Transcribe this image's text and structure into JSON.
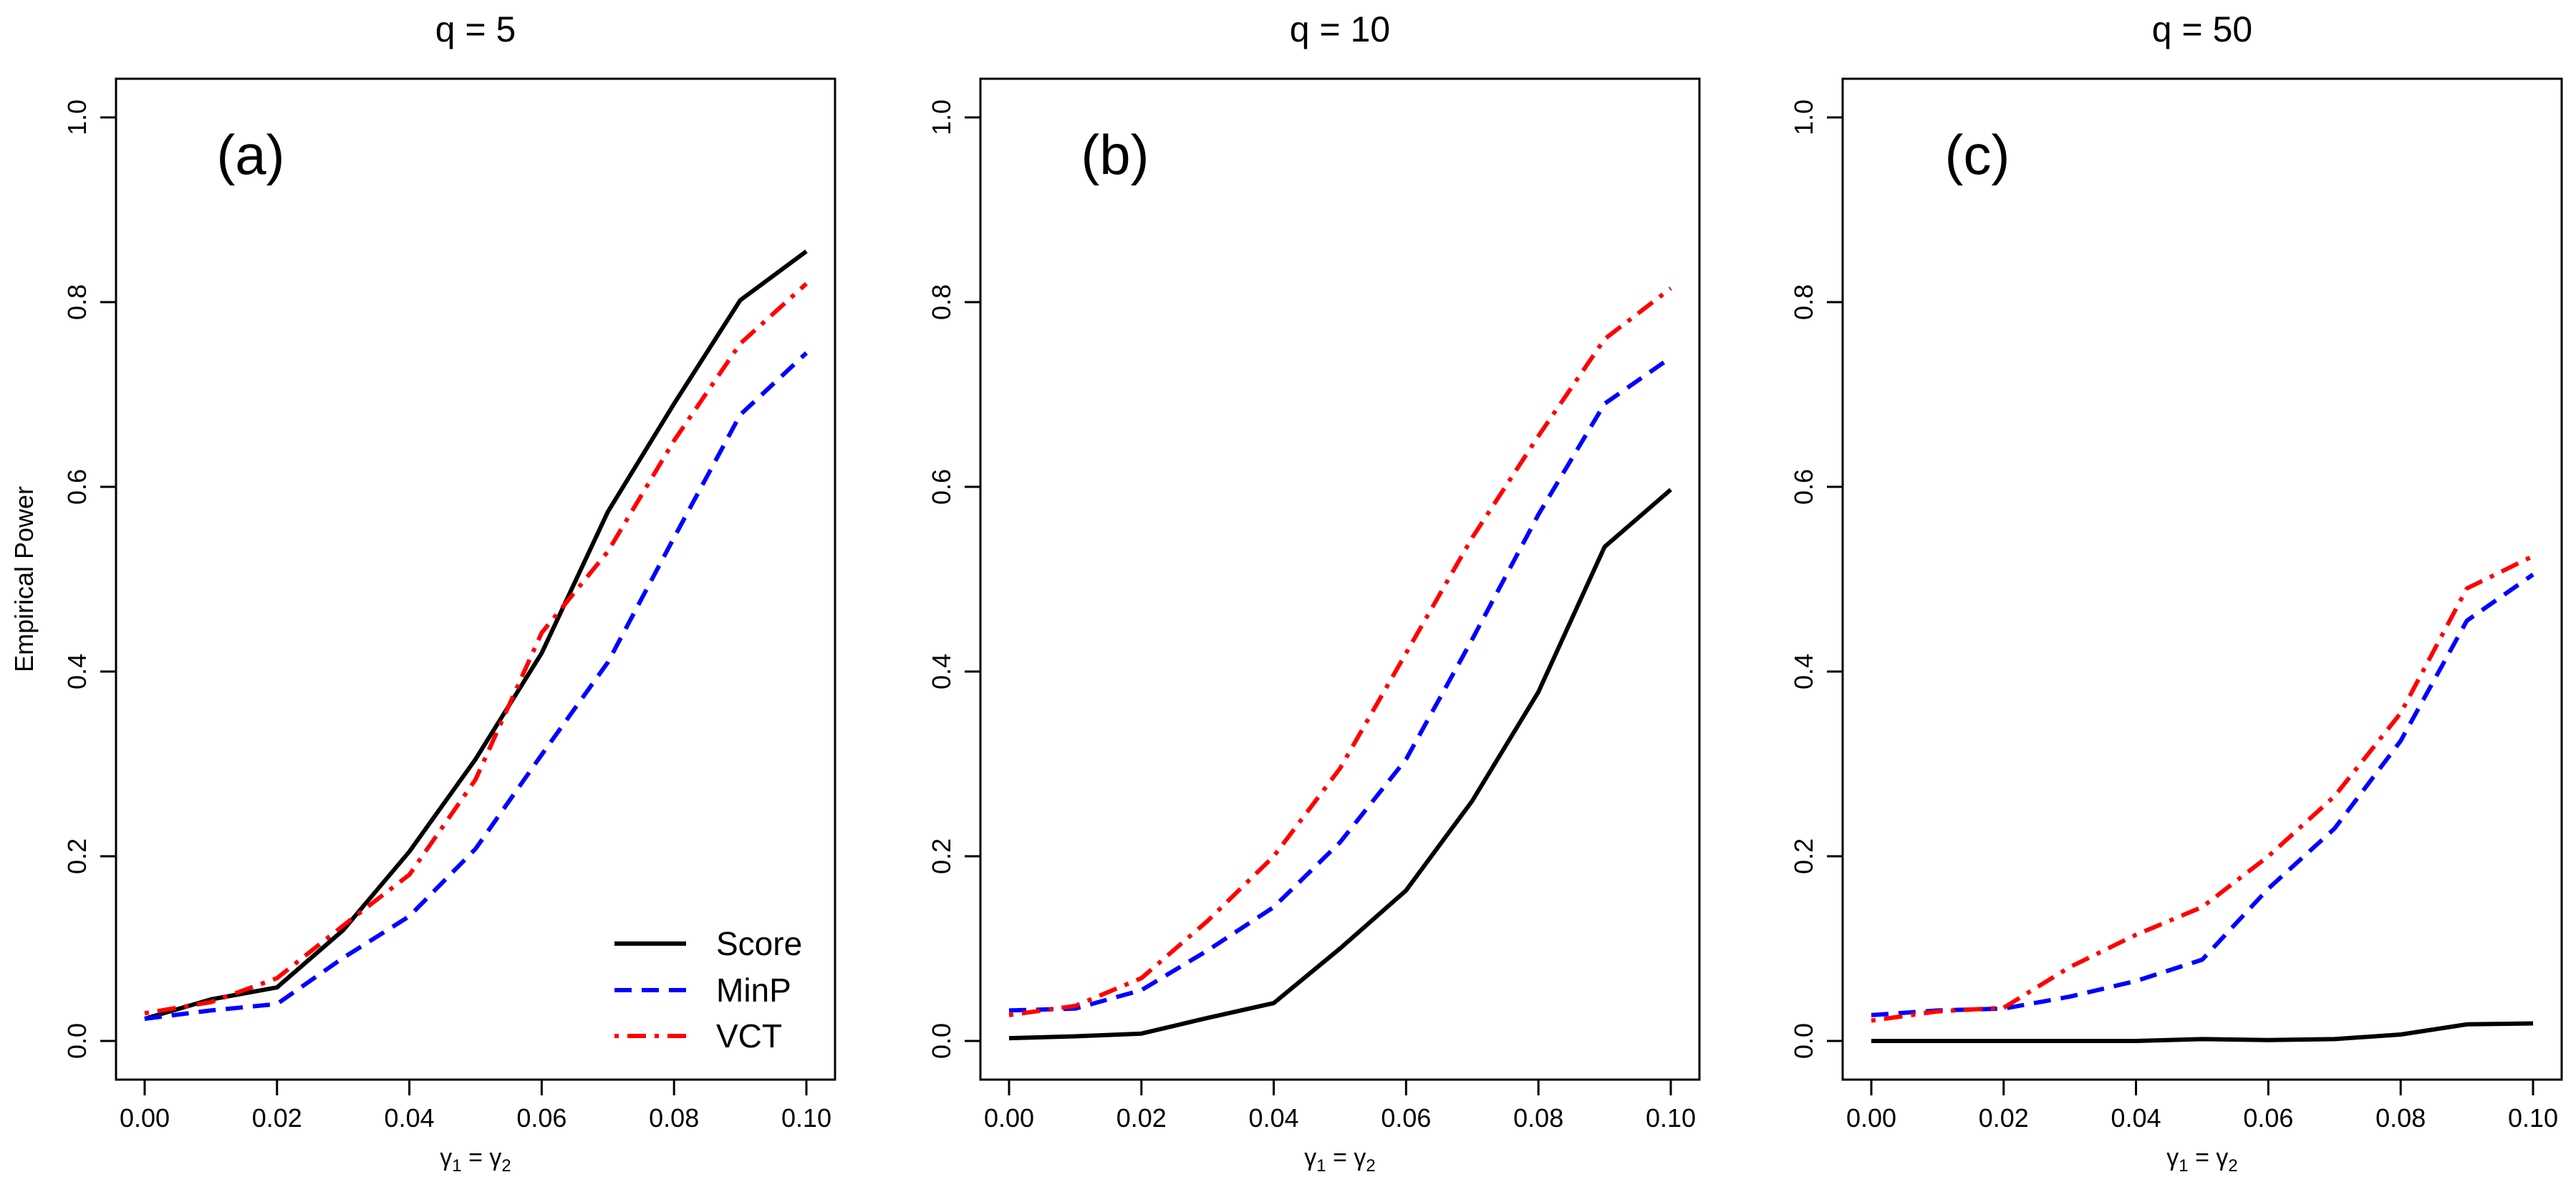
{
  "chart_data": [
    {
      "type": "line",
      "title": "q = 5",
      "panel_label": "(a)",
      "xlabel": "γ1 = γ2",
      "xlabel_parts": {
        "a": "γ",
        "a_sub": "1",
        "eq": " = ",
        "b": "γ",
        "b_sub": "2"
      },
      "ylabel": "Empirical Power",
      "xlim": [
        0,
        0.1
      ],
      "ylim": [
        0,
        1
      ],
      "x": [
        0.0,
        0.01,
        0.02,
        0.03,
        0.04,
        0.05,
        0.06,
        0.07,
        0.08,
        0.09,
        0.1
      ],
      "xticks": [
        "0.00",
        "0.02",
        "0.04",
        "0.06",
        "0.08",
        "0.10"
      ],
      "yticks": [
        "0.0",
        "0.2",
        "0.4",
        "0.6",
        "0.8",
        "1.0"
      ],
      "legend": {
        "position": "bottom-right",
        "entries": [
          "Score",
          "MinP",
          "VCT"
        ]
      },
      "series": [
        {
          "name": "Score",
          "color": "#000000",
          "dash": "solid",
          "values": [
            0.024,
            0.045,
            0.058,
            0.12,
            0.205,
            0.305,
            0.42,
            0.573,
            0.69,
            0.802,
            0.855
          ]
        },
        {
          "name": "MinP",
          "color": "#0000FF",
          "dash": "dashed",
          "values": [
            0.024,
            0.033,
            0.04,
            0.09,
            0.135,
            0.208,
            0.31,
            0.41,
            0.545,
            0.678,
            0.745
          ]
        },
        {
          "name": "VCT",
          "color": "#FF0000",
          "dash": "dotdash",
          "values": [
            0.03,
            0.042,
            0.068,
            0.125,
            0.18,
            0.283,
            0.442,
            0.53,
            0.65,
            0.755,
            0.82
          ]
        }
      ]
    },
    {
      "type": "line",
      "title": "q = 10",
      "panel_label": "(b)",
      "xlabel": "γ1 = γ2",
      "xlabel_parts": {
        "a": "γ",
        "a_sub": "1",
        "eq": " = ",
        "b": "γ",
        "b_sub": "2"
      },
      "ylabel": "",
      "xlim": [
        0,
        0.1
      ],
      "ylim": [
        0,
        1
      ],
      "x": [
        0.0,
        0.01,
        0.02,
        0.03,
        0.04,
        0.05,
        0.06,
        0.07,
        0.08,
        0.09,
        0.1
      ],
      "xticks": [
        "0.00",
        "0.02",
        "0.04",
        "0.06",
        "0.08",
        "0.10"
      ],
      "yticks": [
        "0.0",
        "0.2",
        "0.4",
        "0.6",
        "0.8",
        "1.0"
      ],
      "series": [
        {
          "name": "Score",
          "color": "#000000",
          "dash": "solid",
          "values": [
            0.003,
            0.005,
            0.008,
            0.025,
            0.041,
            0.1,
            0.163,
            0.26,
            0.378,
            0.535,
            0.597
          ]
        },
        {
          "name": "MinP",
          "color": "#0000FF",
          "dash": "dashed",
          "values": [
            0.033,
            0.035,
            0.055,
            0.098,
            0.145,
            0.215,
            0.305,
            0.435,
            0.57,
            0.69,
            0.74
          ]
        },
        {
          "name": "VCT",
          "color": "#FF0000",
          "dash": "dotdash",
          "values": [
            0.028,
            0.038,
            0.068,
            0.13,
            0.2,
            0.295,
            0.42,
            0.545,
            0.655,
            0.76,
            0.815
          ]
        }
      ]
    },
    {
      "type": "line",
      "title": "q = 50",
      "panel_label": "(c)",
      "xlabel": "γ1 = γ2",
      "xlabel_parts": {
        "a": "γ",
        "a_sub": "1",
        "eq": " = ",
        "b": "γ",
        "b_sub": "2"
      },
      "ylabel": "",
      "xlim": [
        0,
        0.1
      ],
      "ylim": [
        0,
        1
      ],
      "x": [
        0.0,
        0.01,
        0.02,
        0.03,
        0.04,
        0.05,
        0.06,
        0.07,
        0.08,
        0.09,
        0.1
      ],
      "xticks": [
        "0.00",
        "0.02",
        "0.04",
        "0.06",
        "0.08",
        "0.10"
      ],
      "yticks": [
        "0.0",
        "0.2",
        "0.4",
        "0.6",
        "0.8",
        "1.0"
      ],
      "series": [
        {
          "name": "Score",
          "color": "#000000",
          "dash": "solid",
          "values": [
            0.0,
            0.0,
            0.0,
            0.0,
            0.0,
            0.002,
            0.001,
            0.002,
            0.007,
            0.018,
            0.019
          ]
        },
        {
          "name": "MinP",
          "color": "#0000FF",
          "dash": "dashed",
          "values": [
            0.028,
            0.033,
            0.035,
            0.048,
            0.065,
            0.088,
            0.165,
            0.23,
            0.325,
            0.455,
            0.505
          ]
        },
        {
          "name": "VCT",
          "color": "#FF0000",
          "dash": "dotdash",
          "values": [
            0.022,
            0.032,
            0.036,
            0.08,
            0.115,
            0.145,
            0.2,
            0.265,
            0.355,
            0.49,
            0.525
          ]
        }
      ]
    }
  ]
}
